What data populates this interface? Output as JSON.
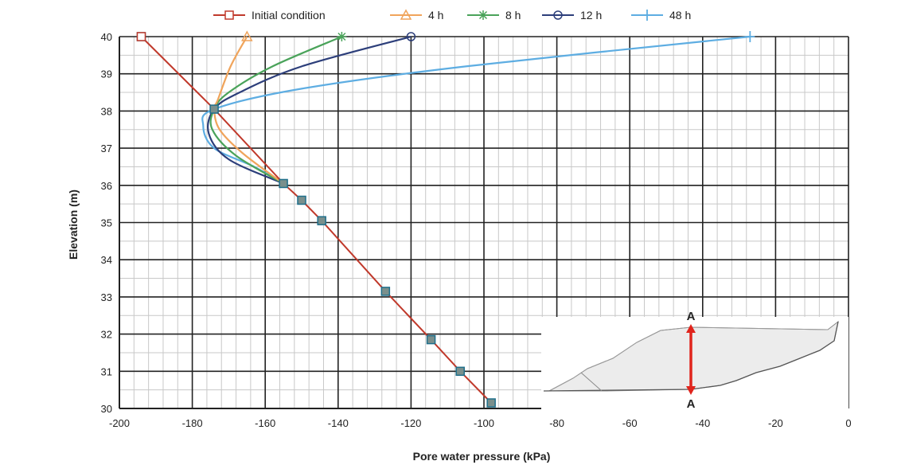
{
  "chart_data": {
    "type": "line",
    "xlabel": "Pore water pressure (kPa)",
    "ylabel": "Elevation (m)",
    "xlim": [
      -200,
      0
    ],
    "ylim": [
      30,
      40
    ],
    "x_ticks": [
      -200,
      -180,
      -160,
      -140,
      -120,
      -100,
      -80,
      -60,
      -40,
      -20,
      0
    ],
    "y_ticks": [
      30,
      31,
      32,
      33,
      34,
      35,
      36,
      37,
      38,
      39,
      40
    ],
    "grid": true,
    "minor_grid": true,
    "legend_position": "top",
    "series": [
      {
        "name": "Initial condition",
        "color": "#c0392b",
        "marker": "square",
        "points": [
          [
            -194,
            40
          ],
          [
            -174,
            38.05
          ],
          [
            -155,
            36.05
          ],
          [
            -150,
            35.6
          ],
          [
            -144.5,
            35.05
          ],
          [
            -127,
            33.15
          ],
          [
            -114.5,
            31.85
          ],
          [
            -106.5,
            31.0
          ],
          [
            -98,
            30.15
          ]
        ]
      },
      {
        "name": "4 h",
        "color": "#f0a45b",
        "marker": "triangle",
        "points": [
          [
            -165,
            40
          ],
          [
            -169.5,
            39.2
          ],
          [
            -173,
            38.3
          ],
          [
            -174,
            38.05
          ],
          [
            -172.5,
            37.5
          ],
          [
            -166,
            36.85
          ],
          [
            -155,
            36.05
          ]
        ]
      },
      {
        "name": "8 h",
        "color": "#4aa35a",
        "marker": "star",
        "points": [
          [
            -139,
            40
          ],
          [
            -158,
            39.2
          ],
          [
            -170,
            38.5
          ],
          [
            -174,
            38.05
          ],
          [
            -174.5,
            37.5
          ],
          [
            -168,
            36.8
          ],
          [
            -155,
            36.05
          ]
        ]
      },
      {
        "name": "12 h",
        "color": "#2c3e7a",
        "marker": "circle",
        "points": [
          [
            -120,
            40
          ],
          [
            -150,
            39.2
          ],
          [
            -167,
            38.5
          ],
          [
            -174,
            38.05
          ],
          [
            -175.5,
            37.4
          ],
          [
            -170,
            36.7
          ],
          [
            -155,
            36.05
          ]
        ]
      },
      {
        "name": "48 h",
        "color": "#5dade2",
        "marker": "plus",
        "points": [
          [
            -27,
            40
          ],
          [
            -105,
            39.2
          ],
          [
            -150,
            38.6
          ],
          [
            -174,
            38.05
          ],
          [
            -177,
            37.6
          ],
          [
            -174,
            37.0
          ],
          [
            -163,
            36.5
          ],
          [
            -155,
            36.05
          ]
        ]
      }
    ],
    "inset": {
      "top_label": "A",
      "bottom_label": "A"
    }
  }
}
